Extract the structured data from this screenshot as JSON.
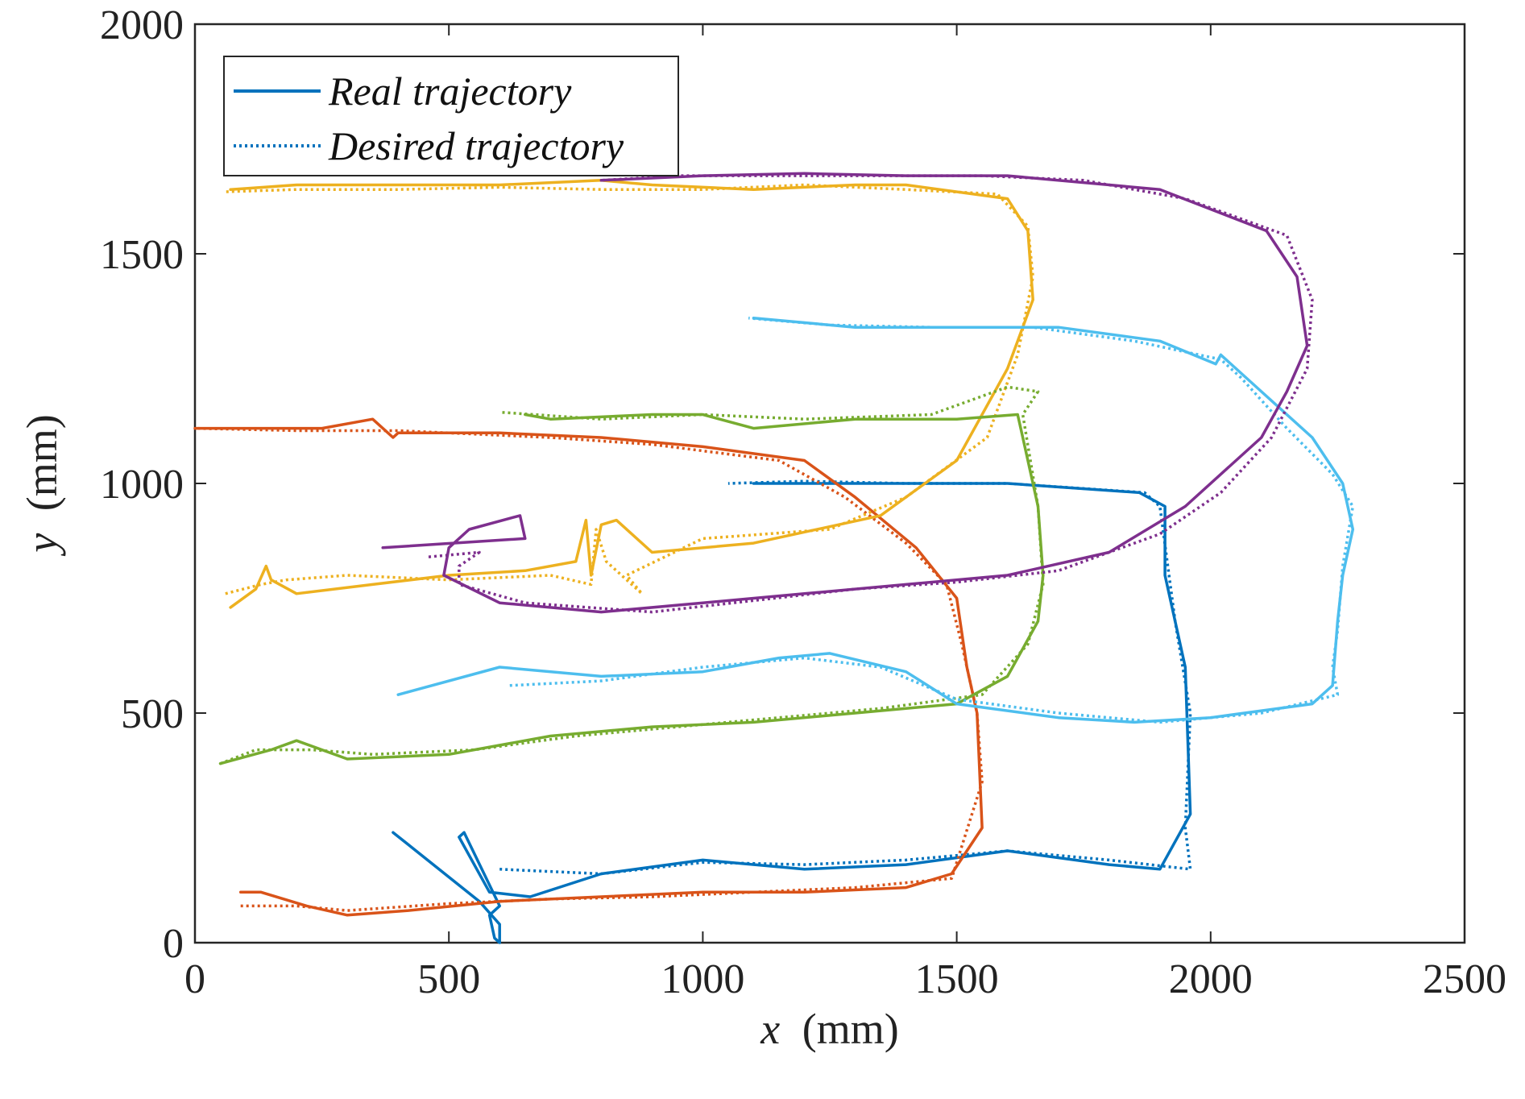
{
  "chart_data": {
    "type": "line",
    "xlabel_var": "x",
    "xlabel_unit": "(mm)",
    "ylabel_var": "y",
    "ylabel_unit": "(mm)",
    "xlim": [
      0,
      2500
    ],
    "ylim": [
      0,
      2000
    ],
    "xticks": [
      0,
      500,
      1000,
      1500,
      2000,
      2500
    ],
    "yticks": [
      0,
      500,
      1000,
      1500,
      2000
    ],
    "xtick_labels": [
      "0",
      "500",
      "1000",
      "1500",
      "2000",
      "2500"
    ],
    "ytick_labels": [
      "0",
      "500",
      "1000",
      "1500",
      "2000"
    ],
    "legend": {
      "position": "top-left",
      "entries": [
        {
          "label": "Real trajectory",
          "style": "solid",
          "color": "#0072BD"
        },
        {
          "label": "Desired trajectory",
          "style": "dotted",
          "color": "#0072BD"
        }
      ]
    },
    "series": [
      {
        "name": "blue",
        "color": "#0072BD",
        "real": [
          [
            390,
            240
          ],
          [
            560,
            90
          ],
          [
            600,
            40
          ],
          [
            600,
            0
          ],
          [
            590,
            10
          ],
          [
            580,
            60
          ],
          [
            600,
            80
          ],
          [
            530,
            240
          ],
          [
            520,
            230
          ],
          [
            580,
            110
          ],
          [
            660,
            100
          ],
          [
            800,
            150
          ],
          [
            1000,
            180
          ],
          [
            1200,
            160
          ],
          [
            1400,
            170
          ],
          [
            1600,
            200
          ],
          [
            1800,
            170
          ],
          [
            1900,
            160
          ],
          [
            1960,
            280
          ],
          [
            1950,
            600
          ],
          [
            1910,
            800
          ],
          [
            1910,
            950
          ],
          [
            1860,
            980
          ],
          [
            1600,
            1000
          ],
          [
            1400,
            1000
          ],
          [
            1200,
            1000
          ],
          [
            1100,
            1000
          ]
        ],
        "desired": [
          [
            600,
            160
          ],
          [
            800,
            150
          ],
          [
            1000,
            175
          ],
          [
            1200,
            170
          ],
          [
            1400,
            180
          ],
          [
            1600,
            200
          ],
          [
            1800,
            180
          ],
          [
            1960,
            160
          ],
          [
            1950,
            250
          ],
          [
            1960,
            500
          ],
          [
            1930,
            700
          ],
          [
            1900,
            950
          ],
          [
            1870,
            980
          ],
          [
            1600,
            1000
          ],
          [
            1400,
            1000
          ],
          [
            1200,
            1005
          ],
          [
            1050,
            1000
          ]
        ]
      },
      {
        "name": "orange",
        "color": "#D95319",
        "real": [
          [
            90,
            110
          ],
          [
            130,
            110
          ],
          [
            220,
            80
          ],
          [
            300,
            60
          ],
          [
            420,
            70
          ],
          [
            600,
            90
          ],
          [
            800,
            100
          ],
          [
            1000,
            110
          ],
          [
            1200,
            110
          ],
          [
            1400,
            120
          ],
          [
            1490,
            150
          ],
          [
            1550,
            250
          ],
          [
            1540,
            500
          ],
          [
            1520,
            600
          ],
          [
            1500,
            750
          ],
          [
            1420,
            860
          ],
          [
            1300,
            970
          ],
          [
            1200,
            1050
          ],
          [
            1000,
            1080
          ],
          [
            800,
            1100
          ],
          [
            600,
            1110
          ],
          [
            400,
            1110
          ],
          [
            390,
            1100
          ],
          [
            350,
            1140
          ],
          [
            250,
            1120
          ],
          [
            0,
            1120
          ]
        ],
        "desired": [
          [
            90,
            80
          ],
          [
            200,
            80
          ],
          [
            300,
            70
          ],
          [
            500,
            85
          ],
          [
            700,
            95
          ],
          [
            900,
            100
          ],
          [
            1100,
            110
          ],
          [
            1300,
            120
          ],
          [
            1490,
            140
          ],
          [
            1550,
            350
          ],
          [
            1540,
            500
          ],
          [
            1510,
            650
          ],
          [
            1480,
            780
          ],
          [
            1400,
            870
          ],
          [
            1280,
            970
          ],
          [
            1150,
            1050
          ],
          [
            900,
            1085
          ],
          [
            700,
            1100
          ],
          [
            400,
            1115
          ],
          [
            200,
            1115
          ],
          [
            0,
            1120
          ]
        ]
      },
      {
        "name": "yellow",
        "color": "#EDB120",
        "real": [
          [
            70,
            730
          ],
          [
            120,
            770
          ],
          [
            140,
            820
          ],
          [
            150,
            790
          ],
          [
            200,
            760
          ],
          [
            350,
            780
          ],
          [
            500,
            800
          ],
          [
            650,
            810
          ],
          [
            750,
            830
          ],
          [
            770,
            920
          ],
          [
            780,
            800
          ],
          [
            800,
            910
          ],
          [
            830,
            920
          ],
          [
            900,
            850
          ],
          [
            1100,
            870
          ],
          [
            1350,
            930
          ],
          [
            1500,
            1050
          ],
          [
            1600,
            1250
          ],
          [
            1650,
            1400
          ],
          [
            1640,
            1550
          ],
          [
            1600,
            1620
          ],
          [
            1400,
            1650
          ],
          [
            1300,
            1650
          ],
          [
            1100,
            1640
          ],
          [
            900,
            1650
          ],
          [
            800,
            1660
          ],
          [
            600,
            1650
          ],
          [
            400,
            1650
          ],
          [
            200,
            1650
          ],
          [
            70,
            1640
          ]
        ],
        "desired": [
          [
            60,
            760
          ],
          [
            130,
            780
          ],
          [
            180,
            790
          ],
          [
            300,
            800
          ],
          [
            500,
            790
          ],
          [
            700,
            800
          ],
          [
            780,
            780
          ],
          [
            790,
            900
          ],
          [
            810,
            830
          ],
          [
            880,
            760
          ],
          [
            850,
            800
          ],
          [
            1000,
            880
          ],
          [
            1250,
            900
          ],
          [
            1400,
            970
          ],
          [
            1560,
            1100
          ],
          [
            1620,
            1280
          ],
          [
            1650,
            1450
          ],
          [
            1640,
            1560
          ],
          [
            1580,
            1630
          ],
          [
            1400,
            1640
          ],
          [
            1200,
            1650
          ],
          [
            1000,
            1640
          ],
          [
            800,
            1640
          ],
          [
            600,
            1645
          ],
          [
            400,
            1640
          ],
          [
            200,
            1640
          ],
          [
            60,
            1635
          ]
        ]
      },
      {
        "name": "green",
        "color": "#77AC30",
        "real": [
          [
            50,
            390
          ],
          [
            150,
            420
          ],
          [
            200,
            440
          ],
          [
            300,
            400
          ],
          [
            500,
            410
          ],
          [
            700,
            450
          ],
          [
            900,
            470
          ],
          [
            1100,
            480
          ],
          [
            1300,
            500
          ],
          [
            1500,
            520
          ],
          [
            1600,
            580
          ],
          [
            1660,
            700
          ],
          [
            1670,
            800
          ],
          [
            1660,
            950
          ],
          [
            1630,
            1100
          ],
          [
            1620,
            1150
          ],
          [
            1500,
            1140
          ],
          [
            1300,
            1140
          ],
          [
            1100,
            1120
          ],
          [
            1000,
            1150
          ],
          [
            900,
            1150
          ],
          [
            700,
            1140
          ],
          [
            650,
            1150
          ]
        ],
        "desired": [
          [
            50,
            390
          ],
          [
            120,
            420
          ],
          [
            230,
            420
          ],
          [
            350,
            410
          ],
          [
            550,
            420
          ],
          [
            750,
            450
          ],
          [
            950,
            470
          ],
          [
            1150,
            490
          ],
          [
            1350,
            510
          ],
          [
            1550,
            540
          ],
          [
            1640,
            650
          ],
          [
            1670,
            780
          ],
          [
            1660,
            950
          ],
          [
            1630,
            1150
          ],
          [
            1660,
            1200
          ],
          [
            1600,
            1210
          ],
          [
            1450,
            1150
          ],
          [
            1200,
            1140
          ],
          [
            1000,
            1150
          ],
          [
            800,
            1140
          ],
          [
            600,
            1155
          ]
        ]
      },
      {
        "name": "cyan",
        "color": "#4DBEEE",
        "real": [
          [
            400,
            540
          ],
          [
            600,
            600
          ],
          [
            800,
            580
          ],
          [
            1000,
            590
          ],
          [
            1150,
            620
          ],
          [
            1250,
            630
          ],
          [
            1400,
            590
          ],
          [
            1500,
            520
          ],
          [
            1700,
            490
          ],
          [
            1850,
            480
          ],
          [
            2000,
            490
          ],
          [
            2200,
            520
          ],
          [
            2240,
            560
          ],
          [
            2250,
            700
          ],
          [
            2260,
            800
          ],
          [
            2280,
            900
          ],
          [
            2260,
            1000
          ],
          [
            2200,
            1100
          ],
          [
            2100,
            1200
          ],
          [
            2020,
            1280
          ],
          [
            2010,
            1260
          ],
          [
            1900,
            1310
          ],
          [
            1700,
            1340
          ],
          [
            1500,
            1340
          ],
          [
            1300,
            1340
          ],
          [
            1100,
            1360
          ]
        ],
        "desired": [
          [
            620,
            560
          ],
          [
            800,
            570
          ],
          [
            1000,
            600
          ],
          [
            1200,
            620
          ],
          [
            1350,
            600
          ],
          [
            1500,
            530
          ],
          [
            1700,
            500
          ],
          [
            1900,
            480
          ],
          [
            2100,
            500
          ],
          [
            2250,
            540
          ],
          [
            2240,
            600
          ],
          [
            2250,
            680
          ],
          [
            2260,
            820
          ],
          [
            2280,
            950
          ],
          [
            2240,
            1020
          ],
          [
            2150,
            1120
          ],
          [
            2060,
            1230
          ],
          [
            2020,
            1270
          ],
          [
            1850,
            1310
          ],
          [
            1650,
            1340
          ],
          [
            1450,
            1340
          ],
          [
            1250,
            1345
          ],
          [
            1090,
            1360
          ]
        ]
      },
      {
        "name": "purple",
        "color": "#7E2F8E",
        "real": [
          [
            370,
            860
          ],
          [
            650,
            880
          ],
          [
            640,
            930
          ],
          [
            540,
            900
          ],
          [
            500,
            860
          ],
          [
            490,
            800
          ],
          [
            600,
            740
          ],
          [
            800,
            720
          ],
          [
            1000,
            740
          ],
          [
            1200,
            760
          ],
          [
            1400,
            780
          ],
          [
            1600,
            800
          ],
          [
            1800,
            850
          ],
          [
            1950,
            950
          ],
          [
            2050,
            1050
          ],
          [
            2100,
            1100
          ],
          [
            2150,
            1200
          ],
          [
            2190,
            1300
          ],
          [
            2170,
            1450
          ],
          [
            2110,
            1550
          ],
          [
            1900,
            1640
          ],
          [
            1600,
            1670
          ],
          [
            1400,
            1670
          ],
          [
            1200,
            1675
          ],
          [
            1000,
            1670
          ],
          [
            800,
            1660
          ]
        ],
        "desired": [
          [
            460,
            840
          ],
          [
            560,
            850
          ],
          [
            520,
            820
          ],
          [
            520,
            780
          ],
          [
            650,
            740
          ],
          [
            900,
            720
          ],
          [
            1100,
            745
          ],
          [
            1300,
            770
          ],
          [
            1500,
            785
          ],
          [
            1700,
            810
          ],
          [
            1900,
            890
          ],
          [
            2020,
            980
          ],
          [
            2120,
            1100
          ],
          [
            2190,
            1250
          ],
          [
            2200,
            1400
          ],
          [
            2150,
            1540
          ],
          [
            1950,
            1620
          ],
          [
            1750,
            1660
          ],
          [
            1550,
            1670
          ],
          [
            1350,
            1670
          ],
          [
            1150,
            1670
          ],
          [
            950,
            1670
          ],
          [
            800,
            1660
          ]
        ]
      }
    ]
  }
}
